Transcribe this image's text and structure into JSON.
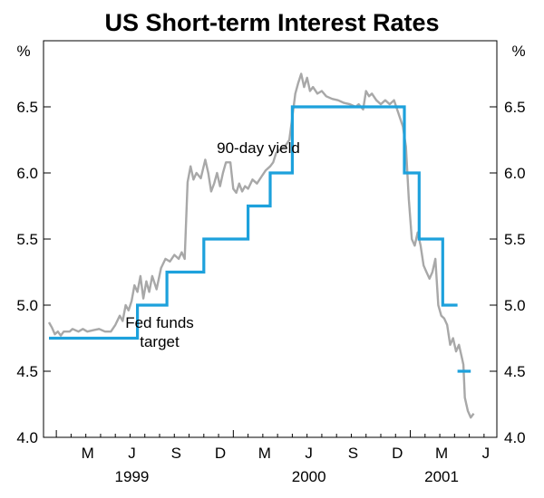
{
  "chart_data": {
    "type": "line",
    "title": "US Short-term Interest Rates",
    "ylabel_left": "%",
    "ylabel_right": "%",
    "ylim": [
      4.0,
      7.0
    ],
    "y_ticks": [
      "4.0",
      "4.5",
      "5.0",
      "5.5",
      "6.0",
      "6.5"
    ],
    "y_tick_values": [
      4.0,
      4.5,
      5.0,
      5.5,
      6.0,
      6.5
    ],
    "x_range_months": [
      0,
      30
    ],
    "x_ticks": [
      {
        "label": "M",
        "month": 3
      },
      {
        "label": "J",
        "month": 6
      },
      {
        "label": "S",
        "month": 9
      },
      {
        "label": "D",
        "month": 12
      },
      {
        "label": "M",
        "month": 15
      },
      {
        "label": "J",
        "month": 18
      },
      {
        "label": "S",
        "month": 21
      },
      {
        "label": "D",
        "month": 24
      },
      {
        "label": "M",
        "month": 27
      },
      {
        "label": "J",
        "month": 30
      }
    ],
    "years": [
      {
        "label": "1999",
        "month": 6
      },
      {
        "label": "2000",
        "month": 18
      },
      {
        "label": "2001",
        "month": 27
      }
    ],
    "series": [
      {
        "name": "90-day yield",
        "label": "90-day yield",
        "color": "#a8a8a8",
        "points": [
          [
            0.0,
            4.87
          ],
          [
            0.2,
            4.83
          ],
          [
            0.4,
            4.78
          ],
          [
            0.6,
            4.8
          ],
          [
            0.8,
            4.77
          ],
          [
            1.0,
            4.8
          ],
          [
            1.4,
            4.8
          ],
          [
            1.6,
            4.82
          ],
          [
            2.0,
            4.8
          ],
          [
            2.3,
            4.82
          ],
          [
            2.6,
            4.8
          ],
          [
            3.0,
            4.81
          ],
          [
            3.4,
            4.82
          ],
          [
            3.8,
            4.8
          ],
          [
            4.2,
            4.8
          ],
          [
            4.5,
            4.85
          ],
          [
            4.8,
            4.92
          ],
          [
            5.0,
            4.88
          ],
          [
            5.2,
            5.0
          ],
          [
            5.4,
            4.96
          ],
          [
            5.6,
            5.03
          ],
          [
            5.8,
            5.15
          ],
          [
            6.0,
            5.1
          ],
          [
            6.2,
            5.22
          ],
          [
            6.4,
            5.05
          ],
          [
            6.6,
            5.18
          ],
          [
            6.8,
            5.1
          ],
          [
            7.0,
            5.22
          ],
          [
            7.3,
            5.12
          ],
          [
            7.6,
            5.28
          ],
          [
            7.9,
            5.35
          ],
          [
            8.2,
            5.33
          ],
          [
            8.5,
            5.38
          ],
          [
            8.8,
            5.35
          ],
          [
            9.0,
            5.4
          ],
          [
            9.2,
            5.35
          ],
          [
            9.4,
            5.93
          ],
          [
            9.6,
            6.05
          ],
          [
            9.8,
            5.95
          ],
          [
            10.0,
            6.0
          ],
          [
            10.3,
            5.96
          ],
          [
            10.6,
            6.1
          ],
          [
            10.8,
            6.0
          ],
          [
            11.0,
            5.86
          ],
          [
            11.2,
            5.92
          ],
          [
            11.4,
            6.0
          ],
          [
            11.6,
            5.9
          ],
          [
            11.8,
            6.0
          ],
          [
            12.0,
            6.08
          ],
          [
            12.3,
            6.08
          ],
          [
            12.5,
            5.88
          ],
          [
            12.7,
            5.85
          ],
          [
            12.9,
            5.92
          ],
          [
            13.1,
            5.86
          ],
          [
            13.3,
            5.9
          ],
          [
            13.5,
            5.88
          ],
          [
            13.8,
            5.95
          ],
          [
            14.1,
            5.92
          ],
          [
            14.4,
            5.97
          ],
          [
            14.7,
            6.02
          ],
          [
            15.0,
            6.05
          ],
          [
            15.2,
            6.08
          ],
          [
            15.4,
            6.15
          ],
          [
            15.7,
            6.18
          ],
          [
            16.0,
            6.2
          ],
          [
            16.3,
            6.25
          ],
          [
            16.5,
            6.42
          ],
          [
            16.7,
            6.6
          ],
          [
            16.9,
            6.68
          ],
          [
            17.1,
            6.75
          ],
          [
            17.3,
            6.65
          ],
          [
            17.5,
            6.72
          ],
          [
            17.7,
            6.62
          ],
          [
            17.9,
            6.65
          ],
          [
            18.2,
            6.6
          ],
          [
            18.5,
            6.62
          ],
          [
            18.8,
            6.58
          ],
          [
            19.2,
            6.56
          ],
          [
            19.6,
            6.55
          ],
          [
            20.0,
            6.53
          ],
          [
            20.4,
            6.52
          ],
          [
            20.8,
            6.5
          ],
          [
            21.0,
            6.52
          ],
          [
            21.3,
            6.48
          ],
          [
            21.5,
            6.62
          ],
          [
            21.7,
            6.58
          ],
          [
            21.9,
            6.6
          ],
          [
            22.2,
            6.55
          ],
          [
            22.5,
            6.52
          ],
          [
            22.8,
            6.55
          ],
          [
            23.1,
            6.52
          ],
          [
            23.4,
            6.55
          ],
          [
            23.7,
            6.45
          ],
          [
            24.0,
            6.35
          ],
          [
            24.2,
            6.2
          ],
          [
            24.4,
            5.8
          ],
          [
            24.6,
            5.5
          ],
          [
            24.8,
            5.45
          ],
          [
            25.0,
            5.55
          ],
          [
            25.2,
            5.45
          ],
          [
            25.4,
            5.3
          ],
          [
            25.6,
            5.25
          ],
          [
            25.8,
            5.2
          ],
          [
            26.0,
            5.25
          ],
          [
            26.2,
            5.35
          ],
          [
            26.4,
            5.0
          ],
          [
            26.6,
            4.92
          ],
          [
            26.8,
            4.9
          ],
          [
            27.0,
            4.85
          ],
          [
            27.2,
            4.7
          ],
          [
            27.4,
            4.75
          ],
          [
            27.6,
            4.65
          ],
          [
            27.8,
            4.7
          ],
          [
            28.0,
            4.6
          ],
          [
            28.1,
            4.55
          ],
          [
            28.2,
            4.3
          ],
          [
            28.4,
            4.2
          ],
          [
            28.6,
            4.15
          ],
          [
            28.8,
            4.18
          ]
        ]
      },
      {
        "name": "Fed funds target",
        "label_lines": [
          "Fed funds",
          "target"
        ],
        "color": "#1da1dc",
        "steps": [
          {
            "from": 0.0,
            "to": 6.0,
            "value": 4.75
          },
          {
            "from": 6.0,
            "to": 8.0,
            "value": 5.0
          },
          {
            "from": 8.0,
            "to": 10.5,
            "value": 5.25
          },
          {
            "from": 10.5,
            "to": 13.5,
            "value": 5.5
          },
          {
            "from": 13.5,
            "to": 15.0,
            "value": 5.75
          },
          {
            "from": 15.0,
            "to": 16.5,
            "value": 6.0
          },
          {
            "from": 16.5,
            "to": 24.1,
            "value": 6.5
          },
          {
            "from": 24.1,
            "to": 25.1,
            "value": 6.0
          },
          {
            "from": 25.1,
            "to": 26.7,
            "value": 5.5
          },
          {
            "from": 26.7,
            "to": 27.7,
            "value": 5.0
          },
          {
            "from": 27.7,
            "to": 28.1,
            "value": 4.5,
            "connected": false
          },
          {
            "from": 28.1,
            "to": 28.6,
            "value": 4.5
          }
        ]
      }
    ]
  }
}
